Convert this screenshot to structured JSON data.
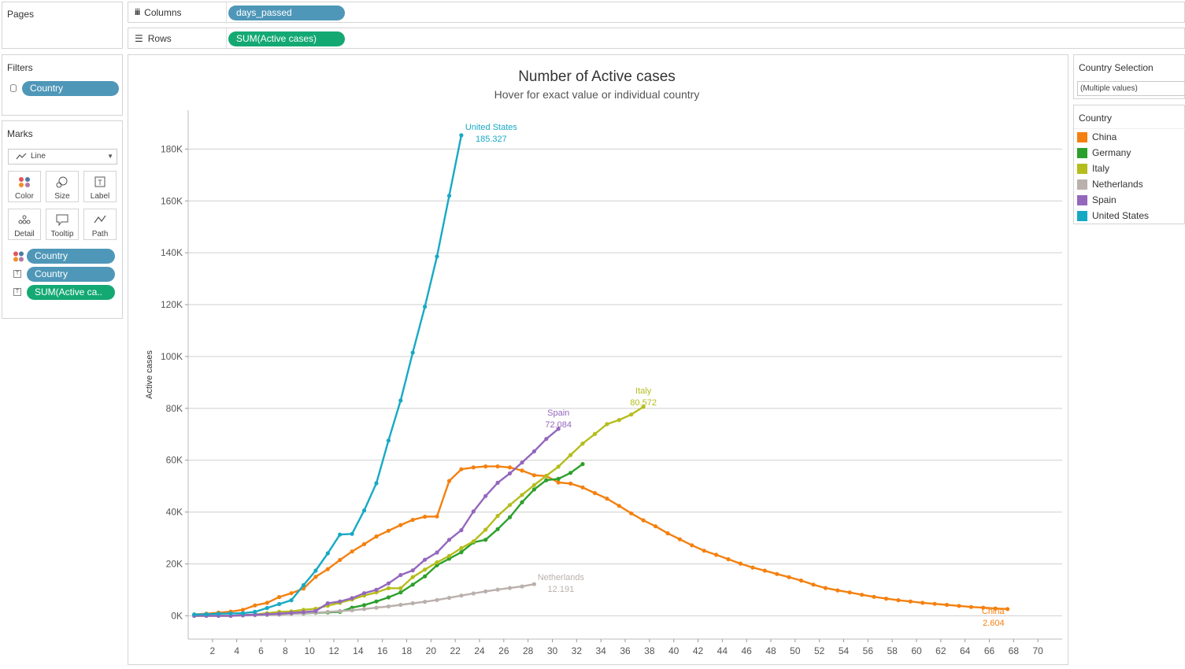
{
  "shelves": {
    "pages_label": "Pages",
    "columns_label": "Columns",
    "columns_pill": "days_passed",
    "rows_label": "Rows",
    "rows_pill": "SUM(Active cases)"
  },
  "filters": {
    "title": "Filters",
    "pill": "Country"
  },
  "marks": {
    "title": "Marks",
    "type": "Line",
    "buttons": [
      "Color",
      "Size",
      "Label",
      "Detail",
      "Tooltip",
      "Path"
    ],
    "pills": [
      "Country",
      "Country",
      "SUM(Active ca.."
    ]
  },
  "country_selection": {
    "title": "Country Selection",
    "value": "(Multiple values)"
  },
  "legend": {
    "title": "Country",
    "items": [
      {
        "label": "China",
        "color": "#f4800f"
      },
      {
        "label": "Germany",
        "color": "#2ca02c"
      },
      {
        "label": "Italy",
        "color": "#b5bd1c"
      },
      {
        "label": "Netherlands",
        "color": "#bab0ac"
      },
      {
        "label": "Spain",
        "color": "#9467bd"
      },
      {
        "label": "United States",
        "color": "#17a9c4"
      }
    ]
  },
  "chart_data": {
    "type": "line",
    "title": "Number of Active cases",
    "subtitle": "Hover for exact value or individual country",
    "xlabel": "",
    "ylabel": "Active cases",
    "xlim": [
      0,
      72
    ],
    "ylim": [
      -9000,
      195000
    ],
    "x_ticks": [
      2,
      4,
      6,
      8,
      10,
      12,
      14,
      16,
      18,
      20,
      22,
      24,
      26,
      28,
      30,
      32,
      34,
      36,
      38,
      40,
      42,
      44,
      46,
      48,
      50,
      52,
      54,
      56,
      58,
      60,
      62,
      64,
      66,
      68,
      70
    ],
    "y_ticks": [
      {
        "value": 0,
        "label": "0K"
      },
      {
        "value": 20000,
        "label": "20K"
      },
      {
        "value": 40000,
        "label": "40K"
      },
      {
        "value": 60000,
        "label": "60K"
      },
      {
        "value": 80000,
        "label": "80K"
      },
      {
        "value": 100000,
        "label": "100K"
      },
      {
        "value": 120000,
        "label": "120K"
      },
      {
        "value": 140000,
        "label": "140K"
      },
      {
        "value": 160000,
        "label": "160K"
      },
      {
        "value": 180000,
        "label": "180K"
      }
    ],
    "grid": true,
    "series": [
      {
        "name": "China",
        "color": "#f4800f",
        "x_start": 0.5,
        "values": [
          500,
          800,
          1200,
          1600,
          2300,
          4000,
          5000,
          7200,
          8700,
          10500,
          15000,
          18000,
          21500,
          24800,
          27600,
          30600,
          32800,
          35000,
          37000,
          38200,
          38300,
          52000,
          56500,
          57200,
          57600,
          57600,
          57200,
          56000,
          54200,
          53900,
          51400,
          51000,
          49500,
          47300,
          45200,
          42400,
          39500,
          36800,
          34500,
          31800,
          29500,
          27200,
          25100,
          23500,
          21800,
          20100,
          18600,
          17400,
          16100,
          14900,
          13600,
          12000,
          10700,
          9800,
          9000,
          8100,
          7300,
          6600,
          6000,
          5500,
          5000,
          4600,
          4200,
          3800,
          3400,
          3100,
          2800,
          2604
        ]
      },
      {
        "name": "Germany",
        "color": "#2ca02c",
        "x_start": 0.5,
        "values": [
          0,
          0,
          0,
          0,
          200,
          400,
          500,
          700,
          800,
          900,
          1100,
          1300,
          1500,
          3100,
          4100,
          5500,
          7100,
          9000,
          12000,
          15200,
          19500,
          22000,
          24500,
          28300,
          29300,
          33400,
          38000,
          43800,
          48700,
          52300,
          52800,
          55100,
          58500
        ]
      },
      {
        "name": "Italy",
        "color": "#b5bd1c",
        "x_start": 0.5,
        "values": [
          0,
          0,
          0,
          0,
          200,
          500,
          1000,
          1500,
          1700,
          2300,
          2700,
          3900,
          5000,
          6300,
          7800,
          9000,
          10600,
          10600,
          14900,
          17800,
          20600,
          23100,
          26100,
          28700,
          33200,
          38500,
          42700,
          46600,
          50400,
          54000,
          57500,
          62000,
          66400,
          70100,
          73900,
          75500,
          77600,
          80572
        ]
      },
      {
        "name": "Netherlands",
        "color": "#bab0ac",
        "x_start": 0.5,
        "values": [
          0,
          0,
          0,
          0,
          100,
          200,
          300,
          400,
          700,
          1000,
          1200,
          1500,
          1800,
          2100,
          2600,
          3100,
          3600,
          4200,
          4800,
          5400,
          6100,
          6900,
          7800,
          8600,
          9400,
          10100,
          10700,
          11300,
          12191
        ]
      },
      {
        "name": "Spain",
        "color": "#9467bd",
        "x_start": 0.5,
        "values": [
          0,
          0,
          0,
          0,
          200,
          400,
          600,
          800,
          1100,
          1400,
          1800,
          4800,
          5500,
          6800,
          8700,
          10000,
          12500,
          15700,
          17500,
          21600,
          24400,
          29300,
          33000,
          40200,
          46200,
          51300,
          54900,
          59100,
          63400,
          68200,
          72084
        ]
      },
      {
        "name": "United States",
        "color": "#17a9c4",
        "x_start": 0.5,
        "values": [
          500,
          600,
          800,
          900,
          1000,
          1500,
          3000,
          4500,
          6000,
          11800,
          17400,
          24100,
          31300,
          31600,
          40600,
          51100,
          67600,
          83000,
          101500,
          119200,
          138600,
          162000,
          185327
        ]
      }
    ],
    "annotations": [
      {
        "series": "United States",
        "name": "United States",
        "value": "185.327"
      },
      {
        "series": "Italy",
        "name": "Italy",
        "value": "80.572"
      },
      {
        "series": "Spain",
        "name": "Spain",
        "value": "72.084"
      },
      {
        "series": "Netherlands",
        "name": "Netherlands",
        "value": "12.191"
      },
      {
        "series": "China",
        "name": "China",
        "value": "2.604"
      }
    ]
  }
}
